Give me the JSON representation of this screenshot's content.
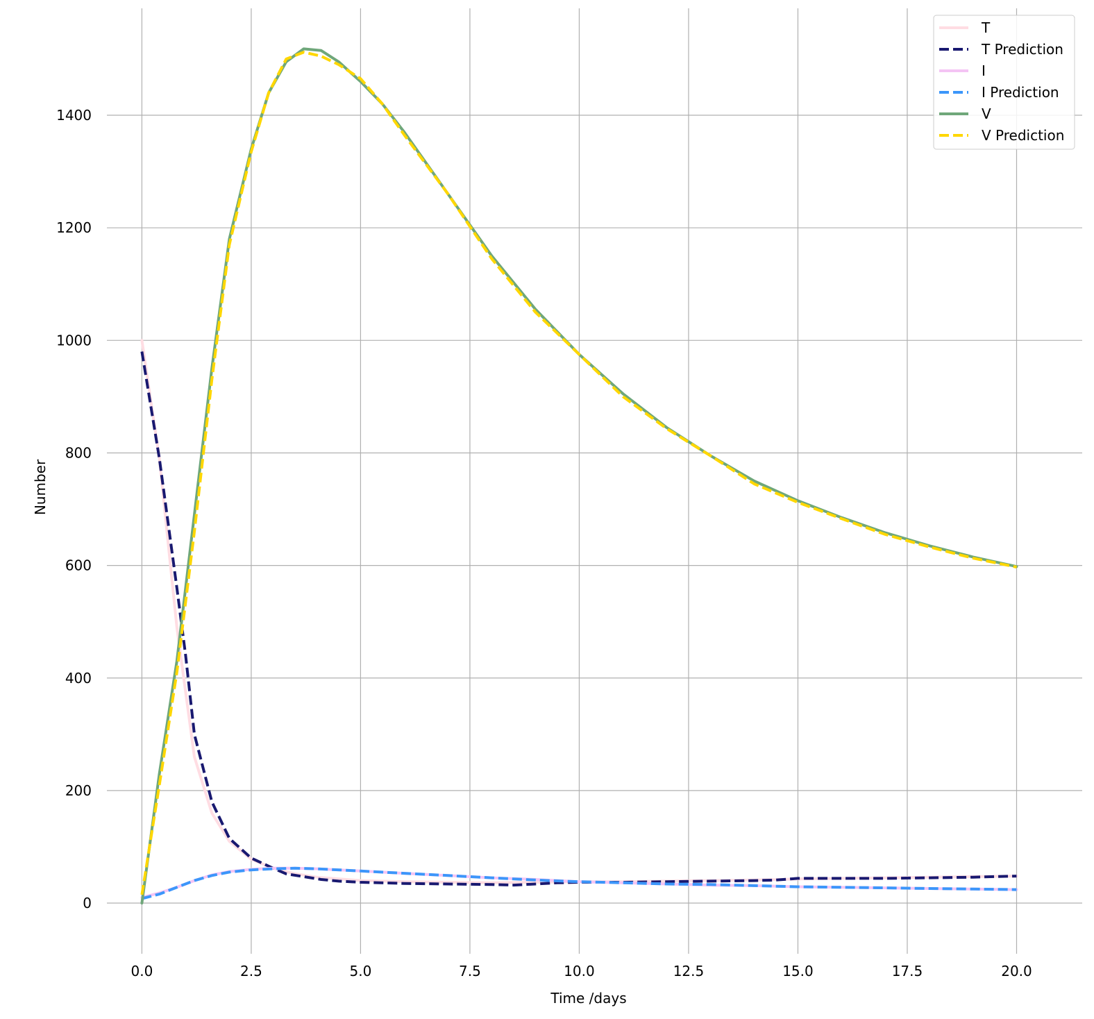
{
  "chart_data": {
    "type": "line",
    "title": "",
    "xlabel": "Time /days",
    "ylabel": "Number",
    "xlim": [
      -0.8,
      21.5
    ],
    "ylim": [
      -90,
      1590
    ],
    "xticks": [
      0.0,
      2.5,
      5.0,
      7.5,
      10.0,
      12.5,
      15.0,
      17.5,
      20.0
    ],
    "xtick_labels": [
      "0.0",
      "2.5",
      "5.0",
      "7.5",
      "10.0",
      "12.5",
      "15.0",
      "17.5",
      "20.0"
    ],
    "yticks": [
      0,
      200,
      400,
      600,
      800,
      1000,
      1200,
      1400
    ],
    "ytick_labels": [
      "0",
      "200",
      "400",
      "600",
      "800",
      "1000",
      "1200",
      "1400"
    ],
    "grid": true,
    "legend_position": "top-right",
    "series": [
      {
        "name": "T",
        "color": "#ffdde3",
        "dash": "solid",
        "x": [
          0,
          0.4,
          0.8,
          1.2,
          1.6,
          2.0,
          2.5,
          3.0,
          3.5,
          4.0,
          5.0,
          6.0,
          7.0,
          8.0,
          9.0,
          10.0,
          11.0,
          12.0,
          13.0,
          14.0,
          14.6,
          15.0,
          16.0,
          17.0,
          18.0,
          19.0,
          20.0
        ],
        "y": [
          1000,
          790,
          490,
          260,
          160,
          110,
          78,
          62,
          52,
          46,
          40,
          38,
          37,
          36,
          37,
          38,
          38,
          39,
          40,
          41,
          42,
          43,
          44,
          45,
          46,
          47,
          48
        ]
      },
      {
        "name": "T Prediction",
        "color": "#191970",
        "dash": "dashed",
        "x": [
          0,
          0.4,
          0.8,
          1.0,
          1.2,
          1.6,
          2.0,
          2.5,
          3.0,
          3.3,
          3.7,
          4.1,
          4.5,
          5.0,
          6.0,
          7.0,
          8.0,
          8.5,
          9.0,
          9.5,
          10.0,
          11.0,
          12.0,
          13.0,
          14.0,
          14.5,
          15.0,
          16.0,
          17.0,
          18.0,
          19.0,
          20.0
        ],
        "y": [
          980,
          790,
          560,
          440,
          300,
          180,
          115,
          80,
          62,
          52,
          47,
          42,
          39,
          37,
          35,
          34,
          33,
          32,
          34,
          36,
          37,
          37,
          38,
          39,
          40,
          41,
          44,
          44,
          44,
          45,
          46,
          48
        ]
      },
      {
        "name": "I",
        "color": "#f4c4f4",
        "dash": "solid",
        "x": [
          0,
          0.4,
          0.8,
          1.2,
          1.6,
          2.0,
          2.5,
          3.0,
          3.5,
          4.0,
          5.0,
          6.0,
          7.0,
          8.0,
          9.0,
          10.0,
          11.0,
          12.0,
          13.0,
          14.0,
          15.0,
          16.0,
          17.0,
          18.0,
          19.0,
          20.0
        ],
        "y": [
          10,
          18,
          28,
          40,
          50,
          56,
          60,
          62,
          62,
          61,
          57,
          53,
          49,
          45,
          42,
          38,
          36,
          34,
          32,
          31,
          29,
          28,
          27,
          26,
          25,
          24
        ]
      },
      {
        "name": "I Prediction",
        "color": "#3c96fa",
        "dash": "dashed",
        "x": [
          0,
          0.4,
          0.8,
          1.2,
          1.6,
          2.0,
          2.5,
          3.0,
          3.5,
          4.0,
          5.0,
          6.0,
          7.0,
          8.0,
          9.0,
          10.0,
          11.0,
          12.0,
          13.0,
          14.0,
          15.0,
          16.0,
          17.0,
          18.0,
          19.0,
          20.0
        ],
        "y": [
          8,
          16,
          28,
          40,
          49,
          55,
          59,
          61,
          62,
          61,
          57,
          53,
          49,
          45,
          41,
          38,
          36,
          34,
          33,
          31,
          29,
          28,
          27,
          26,
          25,
          24
        ]
      },
      {
        "name": "V",
        "color": "#6fa77a",
        "dash": "solid",
        "x": [
          0,
          0.4,
          0.8,
          1.2,
          1.6,
          2.0,
          2.5,
          2.9,
          3.3,
          3.7,
          4.1,
          4.5,
          5.0,
          5.5,
          6.0,
          7.0,
          8.0,
          9.0,
          10.0,
          11.0,
          12.0,
          13.0,
          14.0,
          15.0,
          16.0,
          17.0,
          18.0,
          19.0,
          20.0
        ],
        "y": [
          0,
          230,
          430,
          690,
          950,
          1180,
          1340,
          1440,
          1495,
          1518,
          1515,
          1495,
          1460,
          1420,
          1370,
          1260,
          1150,
          1055,
          975,
          905,
          845,
          795,
          750,
          715,
          685,
          658,
          635,
          615,
          598
        ]
      },
      {
        "name": "V Prediction",
        "color": "#ffd700",
        "dash": "dashed",
        "x": [
          0,
          0.4,
          0.8,
          1.2,
          1.6,
          2.0,
          2.5,
          2.9,
          3.3,
          3.7,
          4.1,
          4.5,
          5.0,
          5.5,
          6.0,
          7.0,
          8.0,
          9.0,
          10.0,
          11.0,
          12.0,
          13.0,
          14.0,
          15.0,
          16.0,
          17.0,
          18.0,
          19.0,
          20.0
        ],
        "y": [
          15,
          210,
          410,
          660,
          930,
          1170,
          1335,
          1440,
          1500,
          1512,
          1505,
          1490,
          1465,
          1420,
          1365,
          1260,
          1145,
          1050,
          975,
          900,
          843,
          795,
          745,
          712,
          683,
          655,
          633,
          613,
          597
        ]
      }
    ]
  }
}
